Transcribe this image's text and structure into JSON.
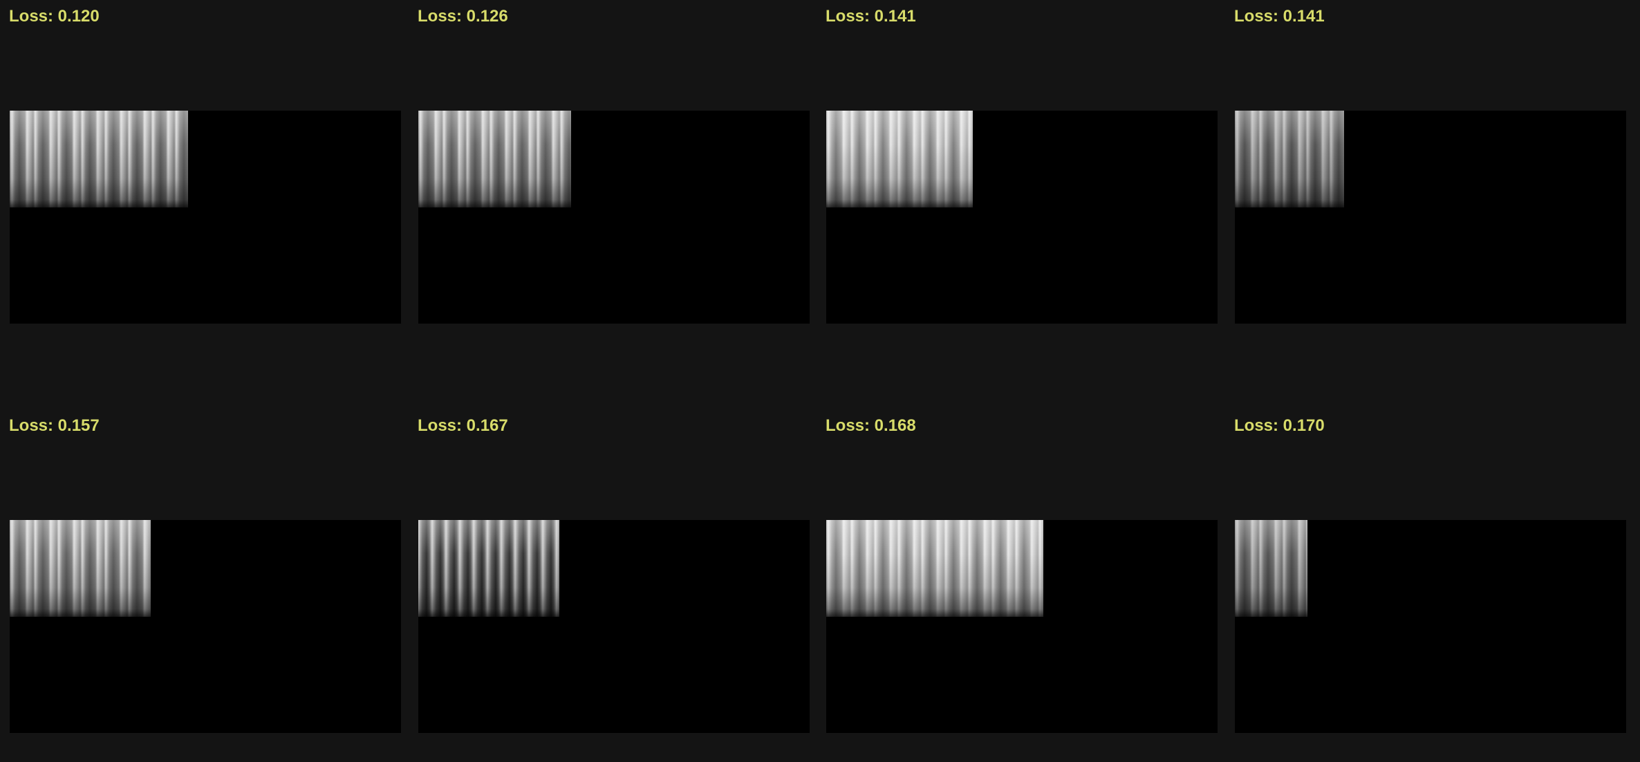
{
  "tiles": [
    {
      "label": "Loss: 0.120",
      "spectrogram_fill": 0.455,
      "brightness": "mid"
    },
    {
      "label": "Loss: 0.126",
      "spectrogram_fill": 0.39,
      "brightness": "mid"
    },
    {
      "label": "Loss: 0.141",
      "spectrogram_fill": 0.375,
      "brightness": "high"
    },
    {
      "label": "Loss: 0.141",
      "spectrogram_fill": 0.28,
      "brightness": "low"
    },
    {
      "label": "Loss: 0.157",
      "spectrogram_fill": 0.36,
      "brightness": "mid"
    },
    {
      "label": "Loss: 0.167",
      "spectrogram_fill": 0.36,
      "brightness": "stripes"
    },
    {
      "label": "Loss: 0.168",
      "spectrogram_fill": 0.555,
      "brightness": "high"
    },
    {
      "label": "Loss: 0.170",
      "spectrogram_fill": 0.185,
      "brightness": "low"
    }
  ],
  "colors": {
    "background": "#141414",
    "label": "#d8dc6a",
    "panel": "#000000"
  }
}
